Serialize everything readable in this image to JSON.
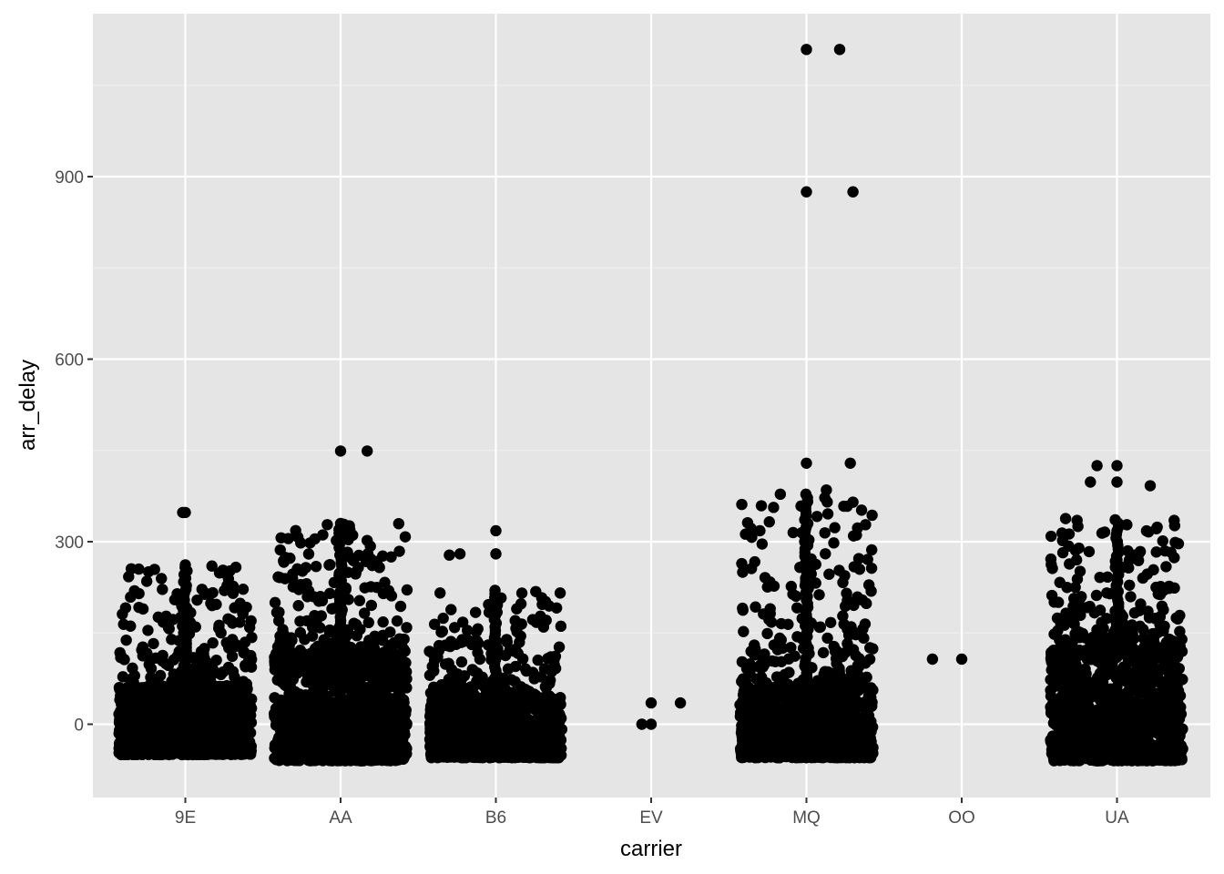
{
  "chart_data": {
    "type": "scatter",
    "geom": "jitter",
    "xlabel": "carrier",
    "ylabel": "arr_delay",
    "categories": [
      "9E",
      "AA",
      "B6",
      "EV",
      "MQ",
      "OO",
      "UA"
    ],
    "ylim": [
      -120,
      1170
    ],
    "yticks": [
      0,
      300,
      600,
      900
    ],
    "grid": true,
    "point_color": "#000000",
    "panel_background": "#e5e5e5",
    "gridline_color": "#ffffff",
    "groups": [
      {
        "carrier": "9E",
        "bulk_range": [
          -50,
          60
        ],
        "spread_range": [
          60,
          260
        ],
        "max": 348,
        "notable": [
          [
            -0.02,
            348
          ],
          [
            0.0,
            348
          ],
          [
            -0.35,
            255
          ],
          [
            0.2,
            260
          ],
          [
            0.38,
            258
          ],
          [
            0.0,
            262
          ]
        ]
      },
      {
        "carrier": "AA",
        "bulk_range": [
          -60,
          110
        ],
        "spread_range": [
          110,
          330
        ],
        "max": 449,
        "notable": [
          [
            0.0,
            449
          ],
          [
            0.2,
            449
          ],
          [
            -0.3,
            298
          ],
          [
            -0.1,
            328
          ],
          [
            0.0,
            330
          ],
          [
            0.38,
            275
          ]
        ]
      },
      {
        "carrier": "B6",
        "bulk_range": [
          -55,
          40
        ],
        "spread_range": [
          40,
          220
        ],
        "max": 318,
        "notable": [
          [
            0.0,
            318
          ],
          [
            -0.35,
            278
          ],
          [
            -0.27,
            280
          ],
          [
            0.0,
            280
          ],
          [
            0.3,
            218
          ]
        ]
      },
      {
        "carrier": "EV",
        "bulk_range": [
          0,
          0
        ],
        "spread_range": [
          0,
          0
        ],
        "max": 35,
        "notable": [
          [
            -0.07,
            0
          ],
          [
            0.0,
            0
          ],
          [
            0.0,
            35
          ],
          [
            0.22,
            35
          ]
        ]
      },
      {
        "carrier": "MQ",
        "bulk_range": [
          -55,
          60
        ],
        "spread_range": [
          60,
          380
        ],
        "max": 1109,
        "notable": [
          [
            0.0,
            1109
          ],
          [
            0.25,
            1109
          ],
          [
            0.0,
            875
          ],
          [
            0.35,
            875
          ],
          [
            0.0,
            429
          ],
          [
            0.33,
            429
          ],
          [
            -0.35,
            318
          ],
          [
            -0.1,
            315
          ],
          [
            0.15,
            385
          ],
          [
            0.35,
            365
          ]
        ]
      },
      {
        "carrier": "OO",
        "bulk_range": [
          107,
          107
        ],
        "spread_range": [
          107,
          107
        ],
        "max": 107,
        "notable": [
          [
            -0.22,
            107
          ],
          [
            0.0,
            107
          ]
        ]
      },
      {
        "carrier": "UA",
        "bulk_range": [
          -60,
          120
        ],
        "spread_range": [
          120,
          340
        ],
        "max": 425,
        "notable": [
          [
            -0.15,
            425
          ],
          [
            0.0,
            425
          ],
          [
            -0.2,
            398
          ],
          [
            0.0,
            398
          ],
          [
            0.25,
            392
          ],
          [
            -0.3,
            335
          ],
          [
            0.43,
            335
          ]
        ]
      }
    ]
  }
}
